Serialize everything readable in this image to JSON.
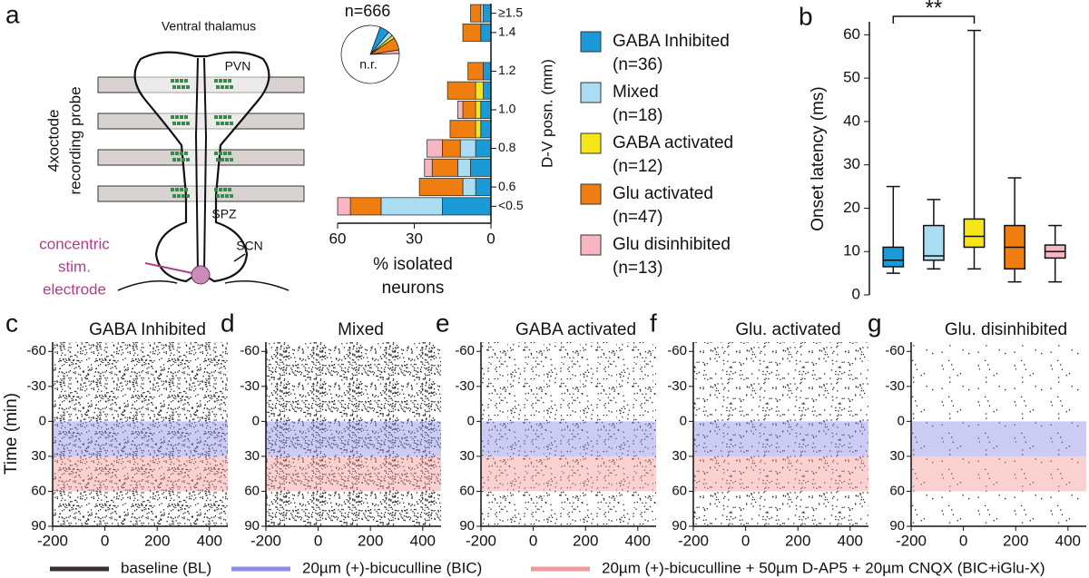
{
  "figure": {
    "panel_labels": [
      "a",
      "b",
      "c",
      "d",
      "e",
      "f",
      "g"
    ]
  },
  "diagram": {
    "title": "Ventral thalamus",
    "pvn": "PVN",
    "spz": "SPZ",
    "scn": "SCN",
    "probe_label": [
      "4xoctode",
      "recording probe"
    ],
    "electrode_label": [
      "concentric",
      "stim.",
      "electrode"
    ]
  },
  "chart_data": [
    {
      "type": "pie",
      "title": "n=666",
      "values": [
        36,
        18,
        12,
        47,
        13,
        540
      ],
      "labels": [
        null,
        null,
        null,
        null,
        null,
        "n.r."
      ],
      "colors": [
        "#1a9ad6",
        "#aadcf2",
        "#f5e61a",
        "#ef7d0f",
        "#f7b6c2",
        "#ffffff"
      ]
    },
    {
      "type": "bar",
      "orientation": "horizontal",
      "stacked": true,
      "y": [
        0.5,
        0.6,
        0.7,
        0.8,
        0.9,
        1.0,
        1.1,
        1.2,
        1.3,
        1.4,
        1.5
      ],
      "series": [
        {
          "name": "GABA Inhibited",
          "n_label": "(n=36)",
          "color": "#1a9ad6",
          "values": [
            19,
            6,
            8,
            6,
            4,
            4,
            3,
            3,
            0,
            4,
            3
          ]
        },
        {
          "name": "Mixed",
          "n_label": "(n=18)",
          "color": "#aadcf2",
          "values": [
            24,
            5,
            5,
            6,
            0,
            0,
            0,
            0,
            0,
            0,
            1
          ]
        },
        {
          "name": "GABA activated",
          "n_label": "(n=12)",
          "color": "#f5e61a",
          "values": [
            0,
            0,
            0,
            0,
            2,
            2,
            3,
            0,
            0,
            0,
            0
          ]
        },
        {
          "name": "Glu activated",
          "n_label": "(n=47)",
          "color": "#ef7d0f",
          "values": [
            12,
            17,
            10,
            7,
            10,
            5,
            11,
            6,
            0,
            7,
            4
          ]
        },
        {
          "name": "Glu disinhibited",
          "n_label": "(n=13)",
          "color": "#f7b6c2",
          "values": [
            5,
            0,
            3,
            6,
            0,
            2,
            0,
            0,
            0,
            0,
            0
          ]
        }
      ],
      "xlim": [
        60,
        0
      ],
      "xticks": [
        60,
        30,
        0
      ],
      "ylim": [
        0.45,
        1.55
      ],
      "yticks": [
        {
          "value": 0.5,
          "label": "<0.5"
        },
        0.6,
        0.8,
        {
          "value": 1.0,
          "label": "1.0"
        },
        1.2,
        1.4,
        {
          "value": 1.5,
          "label": "≥1.5"
        }
      ],
      "xlabel": [
        "% isolated",
        "neurons"
      ],
      "ylabel": "D-V posn. (mm)"
    },
    {
      "type": "box",
      "ylabel": "Onset latency (ms)",
      "colors": [
        "#1a9ad6",
        "#aadcf2",
        "#f5e61a",
        "#ef7d0f",
        "#f7b6c2"
      ],
      "min": [
        5,
        6,
        6,
        3,
        3
      ],
      "q1": [
        6.5,
        8,
        11,
        6,
        8.5
      ],
      "median": [
        8,
        9,
        13.5,
        11,
        10
      ],
      "q3": [
        11,
        16,
        17.5,
        16,
        11.5
      ],
      "max": [
        25,
        22,
        61,
        27,
        16
      ],
      "ylim": [
        0,
        63
      ],
      "yticks": [
        0,
        10,
        20,
        30,
        40,
        50,
        60
      ],
      "annotation": {
        "text": "**",
        "from": 0,
        "to": 2
      }
    },
    {
      "type": "raster",
      "title": "GABA Inhibited",
      "ylabel": "Time (min)",
      "xlim": [
        -200,
        470
      ],
      "xticks": [
        -200,
        0,
        200,
        400
      ],
      "ylim": [
        -68,
        90
      ],
      "yticks": [
        -60,
        -30,
        0,
        30,
        60,
        90
      ]
    },
    {
      "type": "raster",
      "title": "Mixed",
      "xlim": [
        -200,
        470
      ],
      "xticks": [
        -200,
        0,
        200,
        400
      ],
      "ylim": [
        -68,
        90
      ],
      "yticks": [
        -60,
        -30,
        0,
        30,
        60,
        90
      ]
    },
    {
      "type": "raster",
      "title": "GABA activated",
      "xlim": [
        -200,
        470
      ],
      "xticks": [
        -200,
        0,
        200,
        400
      ],
      "ylim": [
        -68,
        90
      ],
      "yticks": [
        -60,
        -30,
        0,
        30,
        60,
        90
      ]
    },
    {
      "type": "raster",
      "title": "Glu. activated",
      "xlim": [
        -200,
        470
      ],
      "xticks": [
        -200,
        0,
        200,
        400
      ],
      "ylim": [
        -68,
        90
      ],
      "yticks": [
        -60,
        -30,
        0,
        30,
        60,
        90
      ]
    },
    {
      "type": "raster",
      "title": "Glu. disinhibited",
      "xlim": [
        -200,
        470
      ],
      "xticks": [
        -200,
        0,
        200,
        400
      ],
      "ylim": [
        -68,
        90
      ],
      "yticks": [
        -60,
        -30,
        0,
        30,
        60,
        90
      ]
    }
  ],
  "treatments": [
    {
      "label": "baseline (BL)",
      "color": "#3a3030"
    },
    {
      "label": "20µm (+)-bicuculline (BIC)",
      "color": "#8c8ce6",
      "from": 0,
      "to": 30
    },
    {
      "label": "20µm (+)-bicuculline + 50µm D-AP5 + 20µm CNQX (BIC+iGlu-X)",
      "color": "#f29a9a",
      "from": 30,
      "to": 60
    }
  ]
}
